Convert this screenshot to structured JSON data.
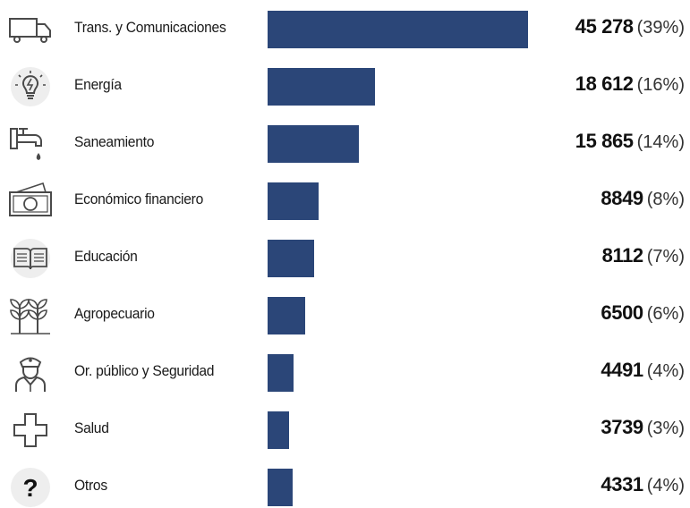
{
  "chart_data": {
    "type": "bar",
    "orientation": "horizontal",
    "title": "",
    "xlabel": "",
    "ylabel": "",
    "categories": [
      "Trans. y Comunicaciones",
      "Energía",
      "Saneamiento",
      "Económico financiero",
      "Educación",
      "Agropecuario",
      "Or. público y Seguridad",
      "Salud",
      "Otros"
    ],
    "values": [
      45278,
      18612,
      15865,
      8849,
      8112,
      6500,
      4491,
      3739,
      4331
    ],
    "value_labels": [
      "45 278",
      "18 612",
      "15 865",
      "8849",
      "8112",
      "6500",
      "4491",
      "3739",
      "4331"
    ],
    "percent_labels": [
      "(39%)",
      "(16%)",
      "(14%)",
      "(8%)",
      "(7%)",
      "(6%)",
      "(4%)",
      "(3%)",
      "(4%)"
    ],
    "icons": [
      "truck-icon",
      "lightbulb-icon",
      "faucet-icon",
      "banknote-icon",
      "book-icon",
      "plants-icon",
      "police-officer-icon",
      "medical-cross-icon",
      "question-mark-icon"
    ],
    "xlim": [
      0,
      45278
    ],
    "grid": false,
    "legend": "none",
    "bar_color": "#2b4678"
  }
}
